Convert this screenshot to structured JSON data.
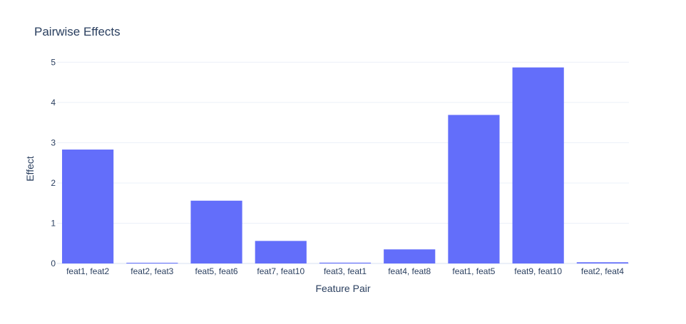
{
  "chart_data": {
    "type": "bar",
    "title": "Pairwise Effects",
    "xlabel": "Feature Pair",
    "ylabel": "Effect",
    "categories": [
      "feat1, feat2",
      "feat2, feat3",
      "feat5, feat6",
      "feat7, feat10",
      "feat3, feat1",
      "feat4, feat8",
      "feat1, feat5",
      "feat9, feat10",
      "feat2, feat4"
    ],
    "values": [
      2.83,
      0.01,
      1.56,
      0.56,
      0.02,
      0.35,
      3.69,
      4.87,
      0.03
    ],
    "ylim": [
      0,
      5.13
    ],
    "yticks": [
      0,
      1,
      2,
      3,
      4,
      5
    ],
    "grid": true,
    "bar_color": "#636efa",
    "text_color": "#2a3f5f",
    "grid_color": "#ebf0f8"
  }
}
